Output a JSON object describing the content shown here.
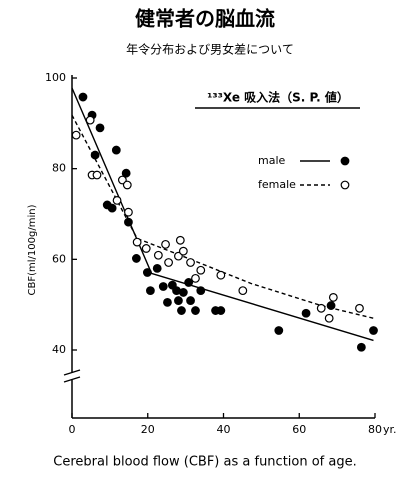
{
  "chart_data": {
    "type": "scatter",
    "title": "健常者の脳血流",
    "subtitle": "年令分布および男女差について",
    "annotation": "¹³³Xe 吸入法（S. P. 値）",
    "ylabel": "CBF(ml/100g/min)",
    "xlabel": "yr.",
    "caption": "Cerebral blood flow (CBF) as a function of age.",
    "xlim": [
      0,
      80
    ],
    "xticks": [
      0,
      20,
      40,
      60,
      80
    ],
    "ylim": [
      25,
      100
    ],
    "yticks": [
      40,
      60,
      80,
      100
    ],
    "axis_break": true,
    "series": [
      {
        "name": "male",
        "color": "#000000",
        "marker": "filled",
        "line_style": "solid",
        "x": [
          2.9,
          5.3,
          6.1,
          7.4,
          9.3,
          10.6,
          11.7,
          14.3,
          14.9,
          17,
          19.9,
          20.7,
          22.5,
          24.1,
          25.2,
          26.5,
          27.6,
          28.1,
          28.9,
          29.4,
          30.8,
          31.3,
          32.6,
          34,
          37.9,
          39.3,
          54.6,
          61.8,
          68.4,
          76.4,
          79.6
        ],
        "values": [
          95.8,
          91.8,
          83,
          89,
          72,
          71.3,
          84.1,
          79,
          68.2,
          60.2,
          57.1,
          53.1,
          58,
          54,
          50.5,
          54.3,
          53.1,
          50.9,
          48.7,
          52.7,
          54.9,
          50.9,
          48.7,
          53.1,
          48.7,
          48.7,
          44.3,
          48.1,
          49.8,
          40.6,
          44.3
        ],
        "fit": {
          "x": [
            0,
            21,
            79.6
          ],
          "values": [
            97.8,
            56.9,
            42.1
          ]
        }
      },
      {
        "name": "female",
        "color": "#000000",
        "marker": "hollow",
        "line_style": "dashed",
        "x": [
          1.1,
          4.8,
          5.3,
          6.6,
          11.9,
          13.3,
          14.6,
          14.9,
          17.2,
          19.6,
          22.8,
          24.7,
          25.5,
          28.1,
          28.6,
          29.4,
          31.3,
          32.6,
          34,
          39.3,
          45.1,
          65.8,
          67.9,
          69,
          75.9
        ],
        "values": [
          87.4,
          90.7,
          78.6,
          78.6,
          73,
          77.5,
          76.4,
          70.4,
          63.8,
          62.4,
          60.9,
          63.3,
          59.3,
          60.7,
          64.2,
          61.8,
          59.3,
          55.8,
          57.6,
          56.5,
          53.1,
          49.2,
          47,
          51.6,
          49.2
        ],
        "fit": {
          "x": [
            0,
            17.2,
            28.6,
            47.2,
            65.8,
            79.6
          ],
          "values": [
            91.8,
            64.6,
            60.9,
            54.7,
            49.8,
            47
          ]
        }
      }
    ]
  }
}
